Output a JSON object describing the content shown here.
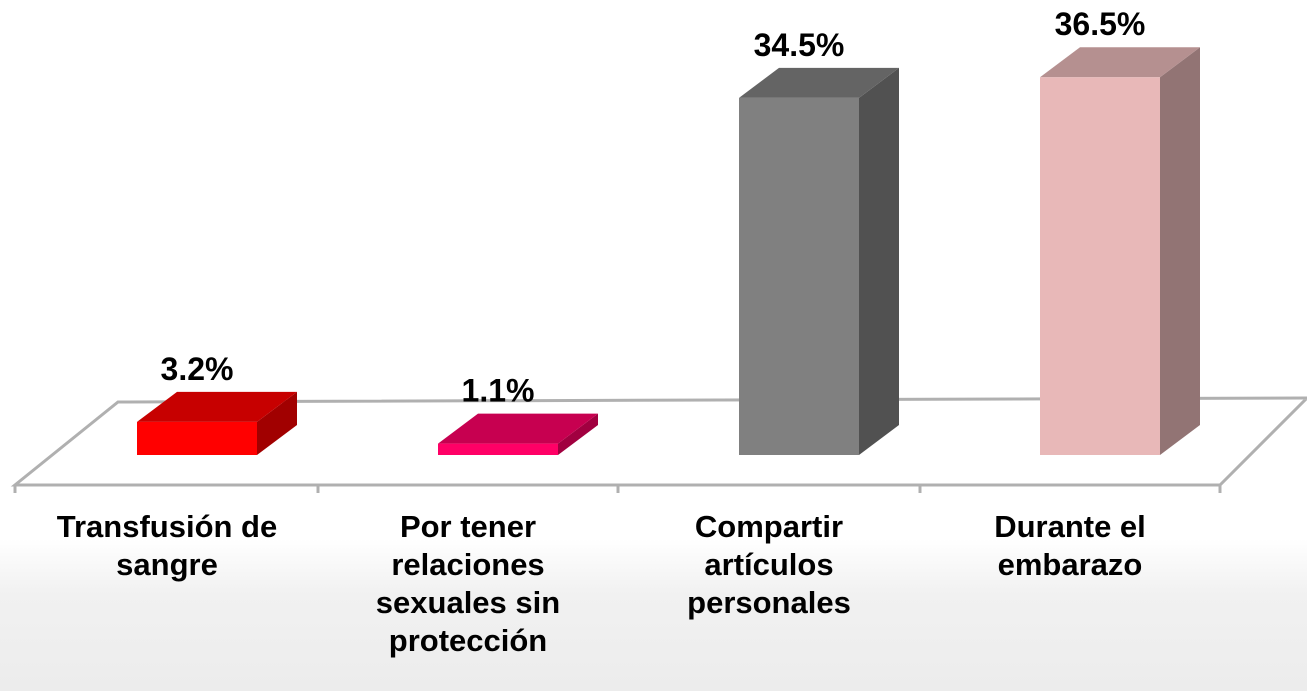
{
  "chart_data": {
    "type": "bar3d",
    "categories": [
      "Transfusión de sangre",
      "Por tener relaciones sexuales sin protección",
      "Compartir artículos personales",
      "Durante el embarazo"
    ],
    "values": [
      3.2,
      1.1,
      34.5,
      36.5
    ],
    "value_labels": [
      "3.2%",
      "1.1%",
      "34.5%",
      "36.5%"
    ],
    "colors": [
      "#ff0000",
      "#ff0066",
      "#808080",
      "#e8b8b8"
    ]
  }
}
